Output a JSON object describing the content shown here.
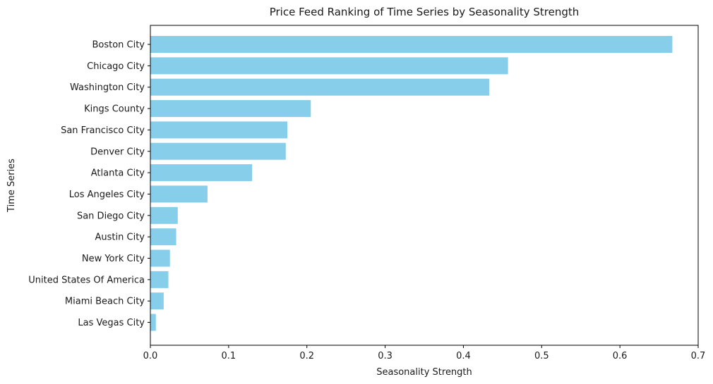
{
  "chart_data": {
    "type": "bar",
    "orientation": "horizontal",
    "title": "Price Feed Ranking of Time Series by Seasonality Strength",
    "xlabel": "Seasonality Strength",
    "ylabel": "Time Series",
    "xlim": [
      0,
      0.7
    ],
    "xticks": [
      0.0,
      0.1,
      0.2,
      0.3,
      0.4,
      0.5,
      0.6,
      0.7
    ],
    "xtick_labels": [
      "0.0",
      "0.1",
      "0.2",
      "0.3",
      "0.4",
      "0.5",
      "0.6",
      "0.7"
    ],
    "grid": false,
    "bar_color": "#87ceeb",
    "categories": [
      "Boston City",
      "Chicago City",
      "Washington City",
      "Kings County",
      "San Francisco City",
      "Denver City",
      "Atlanta City",
      "Los Angeles City",
      "San Diego City",
      "Austin City",
      "New York City",
      "United States Of America",
      "Miami Beach City",
      "Las Vegas City"
    ],
    "values": [
      0.667,
      0.457,
      0.433,
      0.205,
      0.175,
      0.173,
      0.13,
      0.073,
      0.035,
      0.033,
      0.025,
      0.023,
      0.017,
      0.007
    ]
  }
}
